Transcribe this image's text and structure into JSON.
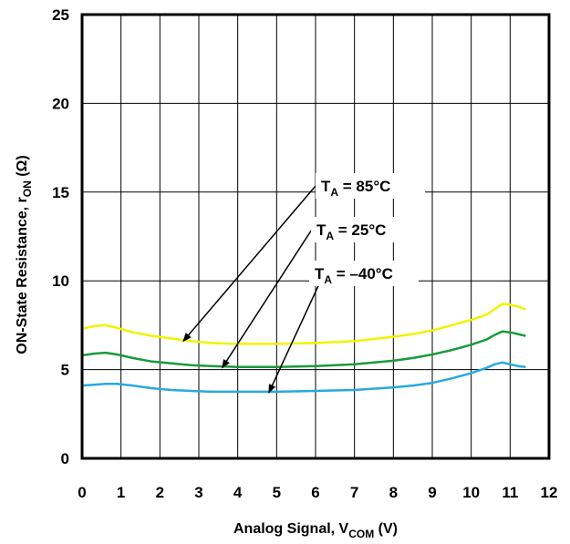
{
  "chart_data": {
    "type": "line",
    "xlabel": {
      "main": "Analog Signal, V",
      "sub": "COM",
      "unit": " (V)"
    },
    "ylabel": {
      "main": "ON-State Resistance,  r",
      "sub": "ON",
      "unit": " (Ω)"
    },
    "xlim": [
      0,
      12
    ],
    "ylim": [
      0,
      25
    ],
    "x_ticks": [
      "0",
      "1",
      "2",
      "3",
      "4",
      "5",
      "6",
      "7",
      "8",
      "9",
      "10",
      "11",
      "12"
    ],
    "y_ticks": [
      "0",
      "5",
      "10",
      "15",
      "20",
      "25"
    ],
    "grid": true,
    "series": [
      {
        "name": "T_A = 85°C",
        "color": "#f2f200",
        "x": [
          0,
          0.3,
          0.6,
          0.9,
          1.3,
          1.8,
          2.3,
          2.8,
          3.3,
          4.0,
          5.0,
          6.0,
          7.0,
          8.0,
          8.5,
          9.0,
          9.5,
          10.0,
          10.4,
          10.6,
          10.8,
          11.0,
          11.2,
          11.4
        ],
        "y": [
          7.3,
          7.45,
          7.5,
          7.35,
          7.1,
          6.9,
          6.75,
          6.6,
          6.5,
          6.45,
          6.45,
          6.5,
          6.6,
          6.85,
          7.0,
          7.2,
          7.5,
          7.8,
          8.1,
          8.4,
          8.7,
          8.65,
          8.55,
          8.4
        ]
      },
      {
        "name": "T_A = 25°C",
        "color": "#1a9a3a",
        "x": [
          0,
          0.3,
          0.6,
          0.9,
          1.3,
          1.8,
          2.3,
          2.8,
          3.3,
          4.0,
          5.0,
          6.0,
          7.0,
          8.0,
          8.5,
          9.0,
          9.5,
          10.0,
          10.4,
          10.6,
          10.8,
          11.0,
          11.2,
          11.4
        ],
        "y": [
          5.8,
          5.9,
          5.95,
          5.85,
          5.65,
          5.45,
          5.35,
          5.25,
          5.2,
          5.15,
          5.15,
          5.2,
          5.3,
          5.5,
          5.65,
          5.85,
          6.1,
          6.4,
          6.7,
          6.95,
          7.15,
          7.1,
          7.0,
          6.9
        ]
      },
      {
        "name": "T_A = –40°C",
        "color": "#29a8e0",
        "x": [
          0,
          0.3,
          0.6,
          0.9,
          1.3,
          1.8,
          2.3,
          2.8,
          3.3,
          4.0,
          5.0,
          6.0,
          7.0,
          8.0,
          8.5,
          9.0,
          9.5,
          10.0,
          10.4,
          10.6,
          10.8,
          11.0,
          11.2,
          11.4
        ],
        "y": [
          4.1,
          4.15,
          4.2,
          4.2,
          4.1,
          3.95,
          3.85,
          3.8,
          3.75,
          3.75,
          3.75,
          3.8,
          3.85,
          4.0,
          4.1,
          4.25,
          4.5,
          4.8,
          5.1,
          5.3,
          5.4,
          5.3,
          5.2,
          5.15
        ]
      }
    ],
    "annotations": [
      {
        "main": "T",
        "sub": "A",
        "rest": " = 85°C",
        "arrow_to": {
          "x": 2.6,
          "y": 6.6
        }
      },
      {
        "main": "T",
        "sub": "A",
        "rest": " = 25°C",
        "arrow_to": {
          "x": 3.6,
          "y": 5.1
        }
      },
      {
        "main": "T",
        "sub": "A",
        "rest": " = –40°C",
        "arrow_to": {
          "x": 4.8,
          "y": 3.7
        }
      }
    ]
  }
}
